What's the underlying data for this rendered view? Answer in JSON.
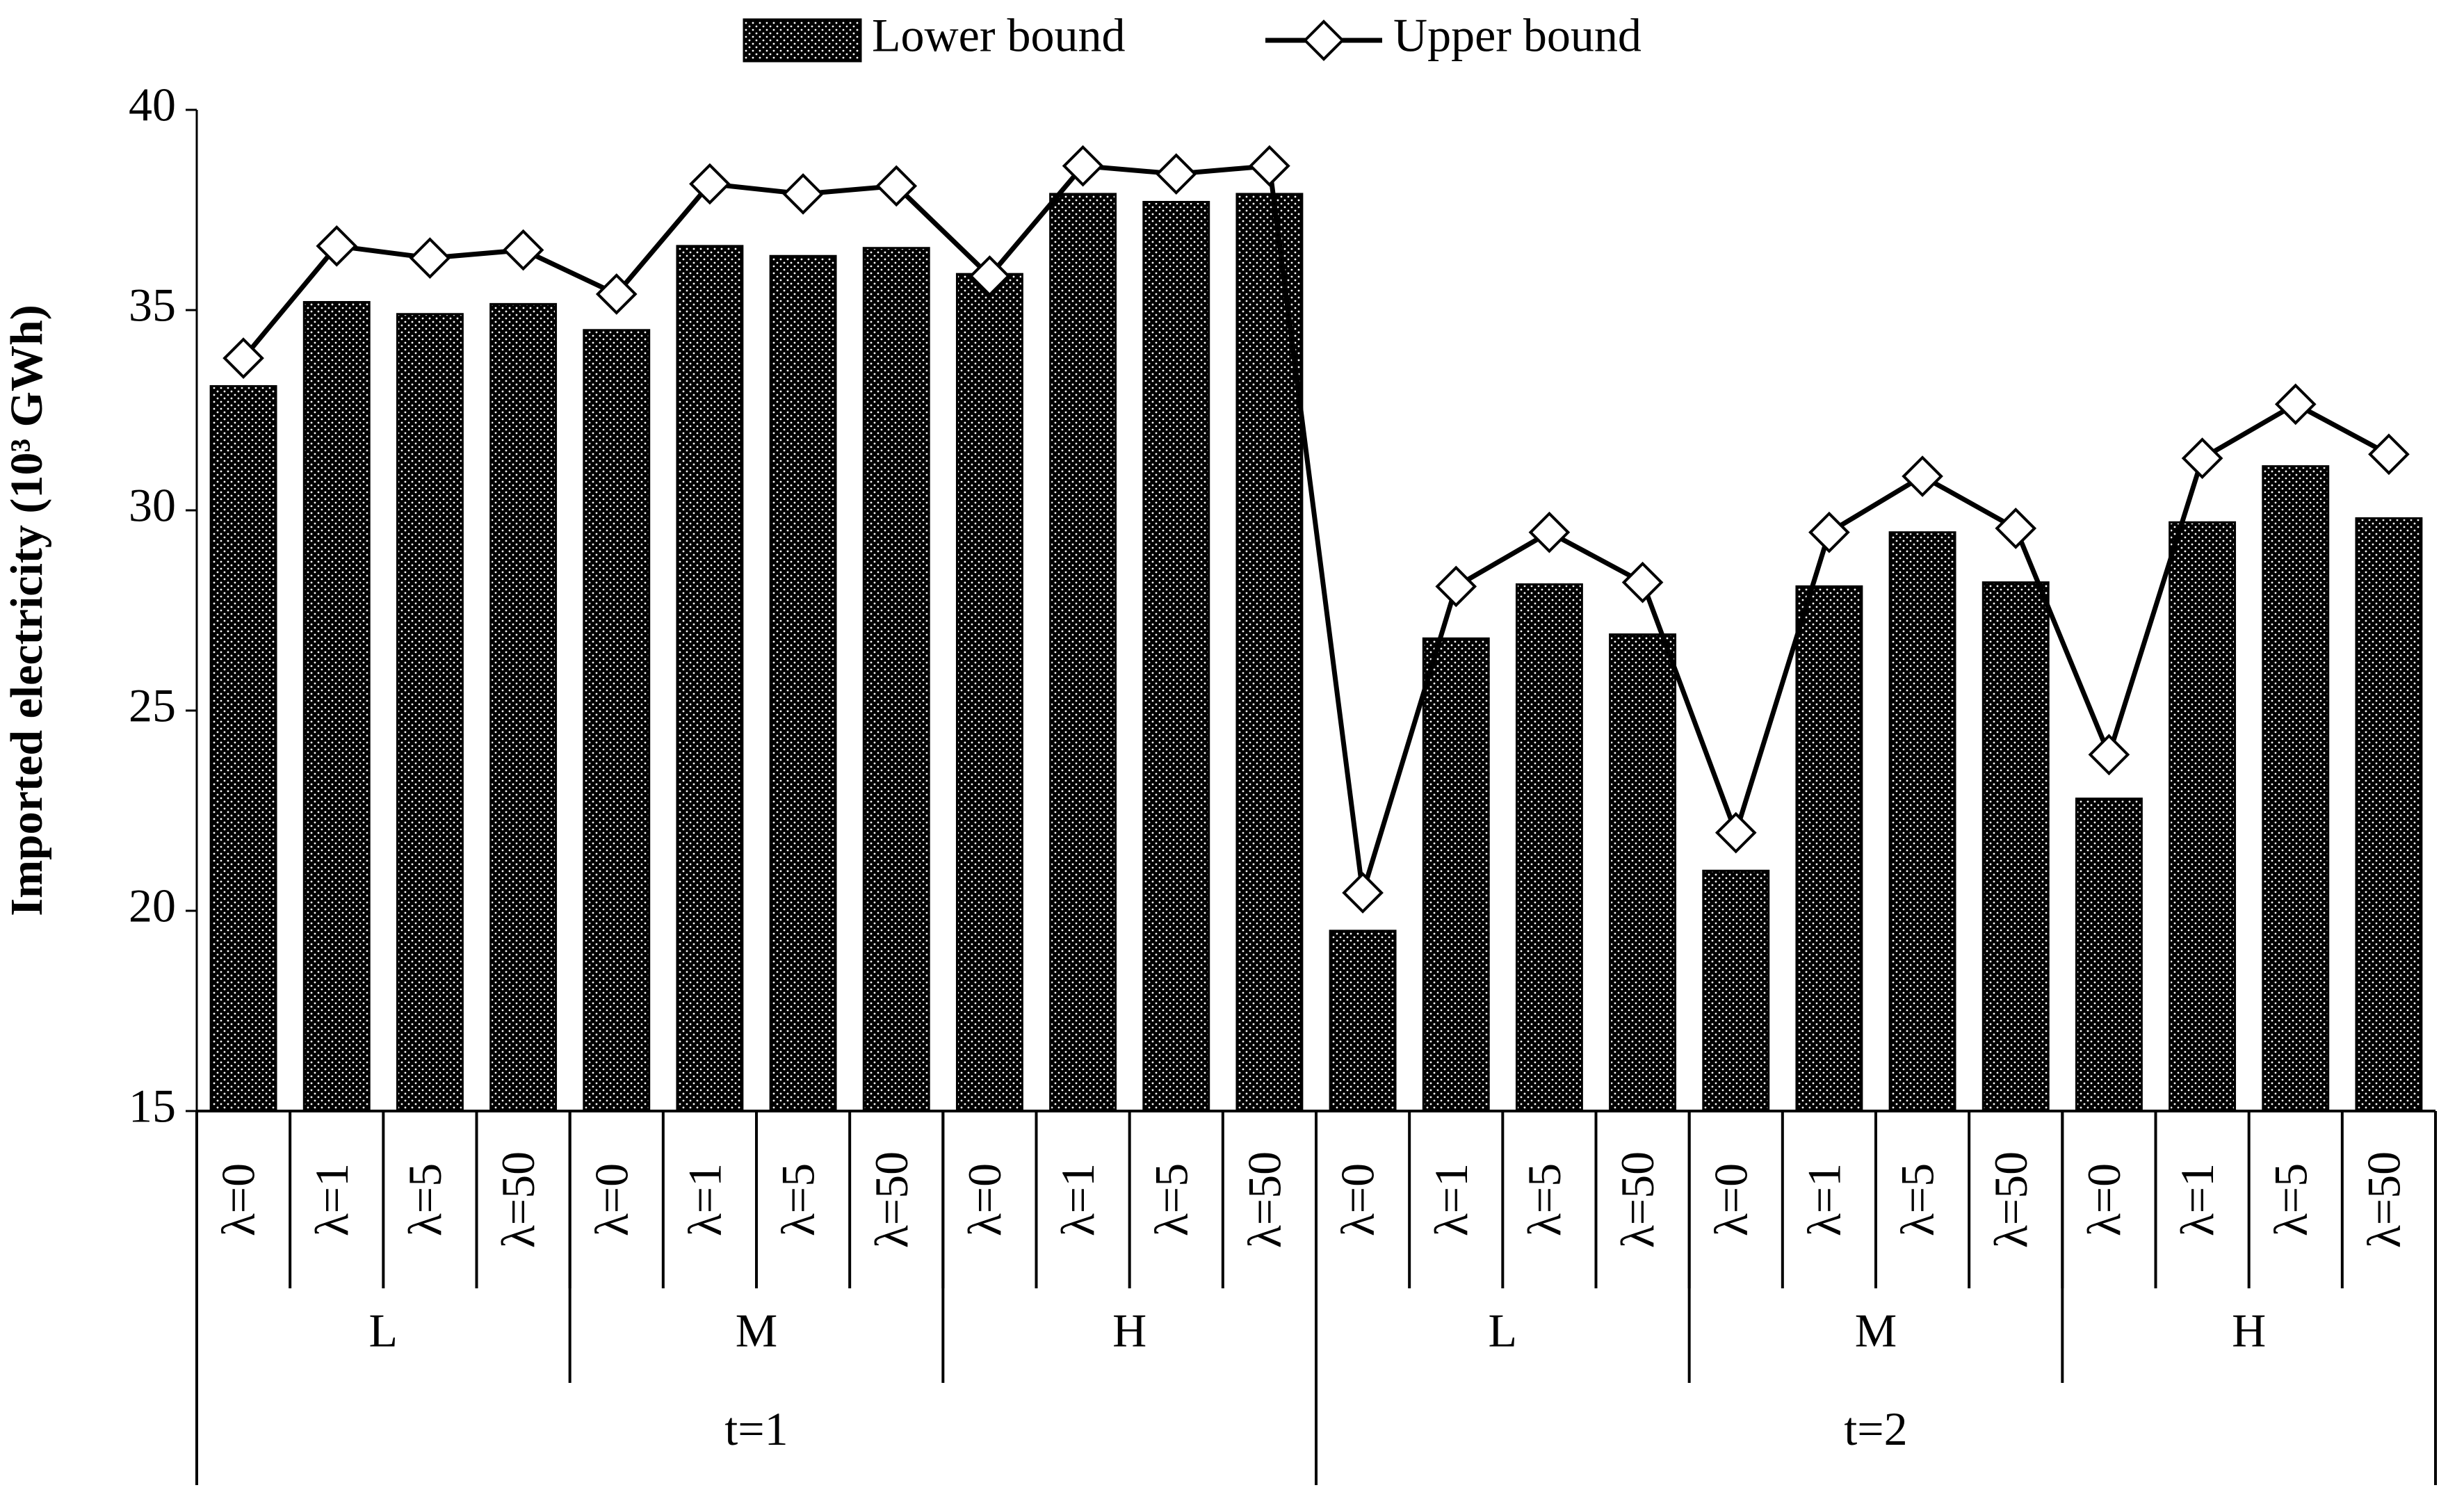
{
  "chart_data": {
    "type": "bar_line",
    "y_label": "Imported electricity (10³ GWh)",
    "category_levels": [
      [
        "λ=0",
        "λ=1",
        "λ=5",
        "λ=50",
        "λ=0",
        "λ=1",
        "λ=5",
        "λ=50",
        "λ=0",
        "λ=1",
        "λ=5",
        "λ=50",
        "λ=0",
        "λ=1",
        "λ=5",
        "λ=50",
        "λ=0",
        "λ=1",
        "λ=5",
        "λ=50",
        "λ=0",
        "λ=1",
        "λ=5",
        "λ=50"
      ],
      [
        "L",
        "M",
        "H",
        "L",
        "M",
        "H"
      ],
      [
        "t=1",
        "t=2"
      ]
    ],
    "series": [
      {
        "name": "Lower bound",
        "kind": "bar",
        "color": "#000000",
        "values": [
          33.1,
          35.2,
          34.9,
          35.15,
          34.5,
          36.6,
          36.35,
          36.55,
          35.9,
          37.9,
          37.7,
          37.9,
          19.5,
          26.8,
          28.15,
          26.9,
          21.0,
          28.1,
          29.45,
          28.2,
          22.8,
          29.7,
          31.1,
          29.8
        ]
      },
      {
        "name": "Upper bound",
        "kind": "line",
        "color": "#000000",
        "values": [
          33.8,
          36.6,
          36.3,
          36.5,
          35.4,
          38.15,
          37.9,
          38.1,
          35.85,
          38.6,
          38.4,
          38.6,
          20.45,
          28.1,
          29.45,
          28.2,
          21.95,
          29.45,
          30.85,
          29.55,
          23.9,
          31.3,
          32.65,
          31.4
        ]
      }
    ],
    "ylim": [
      15,
      40
    ],
    "yticks": [
      15,
      20,
      25,
      30,
      35,
      40
    ]
  }
}
